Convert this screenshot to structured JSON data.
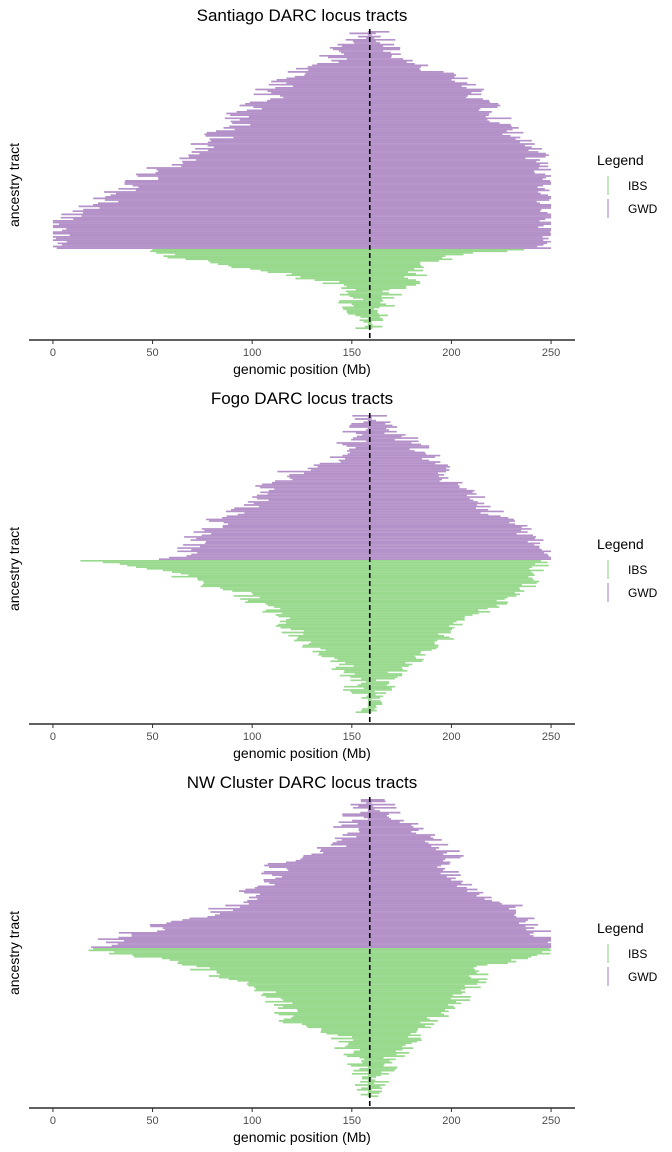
{
  "panels": [
    {
      "title": "Santiago DARC locus tracts",
      "xlabel": "genomic position (Mb)",
      "ylabel": "ancestry tract",
      "legend_title": "Legend",
      "legend_items": [
        "IBS",
        "GWD"
      ]
    },
    {
      "title": "Fogo DARC locus tracts",
      "xlabel": "genomic position (Mb)",
      "ylabel": "ancestry tract",
      "legend_title": "Legend",
      "legend_items": [
        "IBS",
        "GWD"
      ]
    },
    {
      "title": "NW Cluster DARC locus tracts",
      "xlabel": "genomic position (Mb)",
      "ylabel": "ancestry tract",
      "legend_title": "Legend",
      "legend_items": [
        "IBS",
        "GWD"
      ]
    }
  ],
  "colors": {
    "IBS": "#98d98e",
    "GWD": "#b491c8",
    "marker": "#000000"
  },
  "chart_data": [
    {
      "type": "bar",
      "title": "Santiago DARC locus tracts",
      "xlabel": "genomic position (Mb)",
      "ylabel": "ancestry tract",
      "xlim": [
        -12,
        262
      ],
      "xticks": [
        0,
        50,
        100,
        150,
        200,
        250
      ],
      "marker_x": 159,
      "legend": [
        "IBS",
        "GWD"
      ],
      "series": [
        {
          "name": "GWD",
          "tracts": [
            [
              157,
              163
            ],
            [
              155,
              165
            ],
            [
              150,
              168
            ],
            [
              145,
              170
            ],
            [
              140,
              176
            ],
            [
              135,
              182
            ],
            [
              125,
              190
            ],
            [
              118,
              200
            ],
            [
              115,
              205
            ],
            [
              110,
              210
            ],
            [
              108,
              212
            ],
            [
              105,
              215
            ],
            [
              100,
              220
            ],
            [
              95,
              222
            ],
            [
              92,
              225
            ],
            [
              90,
              228
            ],
            [
              85,
              232
            ],
            [
              80,
              235
            ],
            [
              75,
              238
            ],
            [
              70,
              242
            ],
            [
              65,
              244
            ],
            [
              60,
              246
            ],
            [
              50,
              247
            ],
            [
              45,
              248
            ],
            [
              40,
              248
            ],
            [
              35,
              249
            ],
            [
              30,
              249
            ],
            [
              25,
              249
            ],
            [
              15,
              249
            ],
            [
              8,
              249
            ],
            [
              3,
              249
            ],
            [
              0,
              249
            ],
            [
              1,
              249
            ],
            [
              2,
              248
            ],
            [
              5,
              249
            ]
          ]
        },
        {
          "name": "IBS",
          "tracts": [
            [
              47,
              232
            ],
            [
              60,
              200
            ],
            [
              80,
              190
            ],
            [
              100,
              185
            ],
            [
              120,
              182
            ],
            [
              140,
              180
            ],
            [
              145,
              172
            ],
            [
              148,
              170
            ],
            [
              150,
              168
            ],
            [
              152,
              166
            ],
            [
              155,
              165
            ],
            [
              157,
              163
            ],
            [
              158,
              161
            ]
          ]
        }
      ]
    },
    {
      "type": "bar",
      "title": "Fogo DARC locus tracts",
      "xlabel": "genomic position (Mb)",
      "ylabel": "ancestry tract",
      "xlim": [
        -12,
        262
      ],
      "xticks": [
        0,
        50,
        100,
        150,
        200,
        250
      ],
      "marker_x": 159,
      "legend": [
        "IBS",
        "GWD"
      ],
      "series": [
        {
          "name": "GWD",
          "tracts": [
            [
              157,
              163
            ],
            [
              155,
              168
            ],
            [
              153,
              172
            ],
            [
              152,
              178
            ],
            [
              150,
              184
            ],
            [
              148,
              190
            ],
            [
              140,
              194
            ],
            [
              120,
              196
            ],
            [
              112,
              198
            ],
            [
              110,
              205
            ],
            [
              105,
              210
            ],
            [
              100,
              214
            ],
            [
              95,
              220
            ],
            [
              85,
              228
            ],
            [
              80,
              234
            ],
            [
              75,
              240
            ],
            [
              70,
              245
            ],
            [
              65,
              248
            ],
            [
              60,
              249
            ]
          ]
        },
        {
          "name": "IBS",
          "tracts": [
            [
              15,
              250
            ],
            [
              50,
              243
            ],
            [
              65,
              238
            ],
            [
              76,
              240
            ],
            [
              95,
              235
            ],
            [
              100,
              228
            ],
            [
              110,
              220
            ],
            [
              112,
              212
            ],
            [
              115,
              205
            ],
            [
              120,
              200
            ],
            [
              125,
              195
            ],
            [
              130,
              190
            ],
            [
              140,
              186
            ],
            [
              145,
              178
            ],
            [
              148,
              172
            ],
            [
              150,
              168
            ],
            [
              152,
              166
            ],
            [
              155,
              164
            ],
            [
              157,
              162
            ],
            [
              158,
              161
            ]
          ]
        }
      ]
    },
    {
      "type": "bar",
      "title": "NW Cluster DARC locus tracts",
      "xlabel": "genomic position (Mb)",
      "ylabel": "ancestry tract",
      "xlim": [
        -12,
        262
      ],
      "xticks": [
        0,
        50,
        100,
        150,
        200,
        250
      ],
      "marker_x": 159,
      "legend": [
        "IBS",
        "GWD"
      ],
      "series": [
        {
          "name": "GWD",
          "tracts": [
            [
              157,
              163
            ],
            [
              154,
              167
            ],
            [
              152,
              172
            ],
            [
              150,
              178
            ],
            [
              148,
              184
            ],
            [
              145,
              190
            ],
            [
              140,
              196
            ],
            [
              120,
              203
            ],
            [
              115,
              200
            ],
            [
              110,
              198
            ],
            [
              105,
              205
            ],
            [
              100,
              212
            ],
            [
              95,
              222
            ],
            [
              88,
              232
            ],
            [
              75,
              236
            ],
            [
              60,
              240
            ],
            [
              45,
              244
            ],
            [
              30,
              248
            ],
            [
              20,
              249
            ]
          ]
        },
        {
          "name": "IBS",
          "tracts": [
            [
              20,
              249
            ],
            [
              45,
              240
            ],
            [
              70,
              218
            ],
            [
              80,
              214
            ],
            [
              95,
              212
            ],
            [
              105,
              208
            ],
            [
              110,
              205
            ],
            [
              115,
              200
            ],
            [
              118,
              195
            ],
            [
              120,
              190
            ],
            [
              140,
              186
            ],
            [
              145,
              180
            ],
            [
              148,
              176
            ],
            [
              150,
              172
            ],
            [
              152,
              168
            ],
            [
              155,
              166
            ],
            [
              157,
              164
            ],
            [
              158,
              162
            ],
            [
              158,
              160
            ]
          ]
        }
      ]
    }
  ]
}
